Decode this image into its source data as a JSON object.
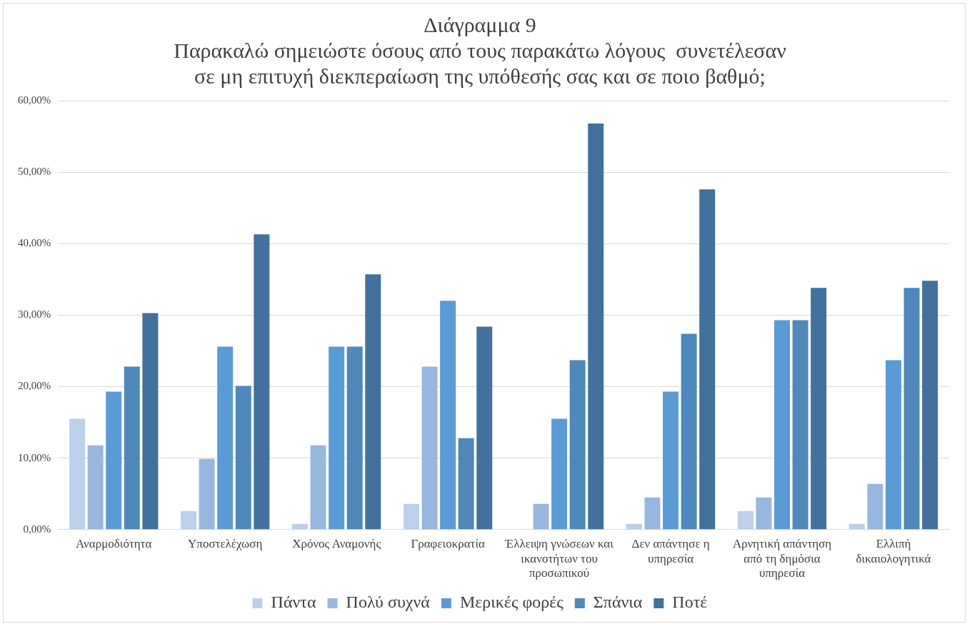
{
  "chart_data": {
    "type": "bar",
    "title": [
      "Διάγραμμα 9",
      "Παρακαλώ σημειώστε όσους από τους παρακάτω λόγους  συνετέλεσαν",
      "σε μη επιτυχή διεκπεραίωση της υπόθεσής σας και σε ποιο βαθμό;"
    ],
    "categories": [
      "Αναρμοδιότητα",
      "Υποστελέχωση",
      "Χρόνος Αναμονής",
      "Γραφειοκρατία",
      "Έλλειψη γνώσεων και ικανοτήτων του προσωπικού",
      "Δεν απάντησε η υπηρεσία",
      "Αρνητική απάντηση από τη δημόσια υπηρεσία",
      "Ελλιπή δικαιολογητικά"
    ],
    "series": [
      {
        "name": "Πάντα",
        "color": "#bcd0ea",
        "values": [
          15.5,
          2.6,
          0.8,
          3.6,
          0,
          0.8,
          2.6,
          0.8
        ]
      },
      {
        "name": "Πολύ συχνά",
        "color": "#98b7df",
        "values": [
          11.8,
          9.9,
          11.8,
          22.8,
          3.6,
          4.5,
          4.5,
          6.4
        ]
      },
      {
        "name": "Μερικές φορές",
        "color": "#5b9bd5",
        "values": [
          19.3,
          25.6,
          25.6,
          32.0,
          15.5,
          19.3,
          29.3,
          23.7
        ]
      },
      {
        "name": "Σπάνια",
        "color": "#4f88bb",
        "values": [
          22.8,
          20.1,
          25.6,
          12.8,
          23.7,
          27.4,
          29.3,
          33.8
        ]
      },
      {
        "name": "Ποτέ",
        "color": "#41719c",
        "values": [
          30.3,
          41.3,
          35.7,
          28.4,
          56.8,
          47.6,
          33.8,
          34.8
        ]
      }
    ],
    "ylim": [
      0,
      60
    ],
    "yticks": [
      {
        "value": 0,
        "label": "0,00%"
      },
      {
        "value": 10,
        "label": "10,00%"
      },
      {
        "value": 20,
        "label": "20,00%"
      },
      {
        "value": 30,
        "label": "30,00%"
      },
      {
        "value": 40,
        "label": "40,00%"
      },
      {
        "value": 50,
        "label": "50,00%"
      },
      {
        "value": 60,
        "label": "60,00%"
      }
    ],
    "grid": "y",
    "legend": "bottom"
  }
}
